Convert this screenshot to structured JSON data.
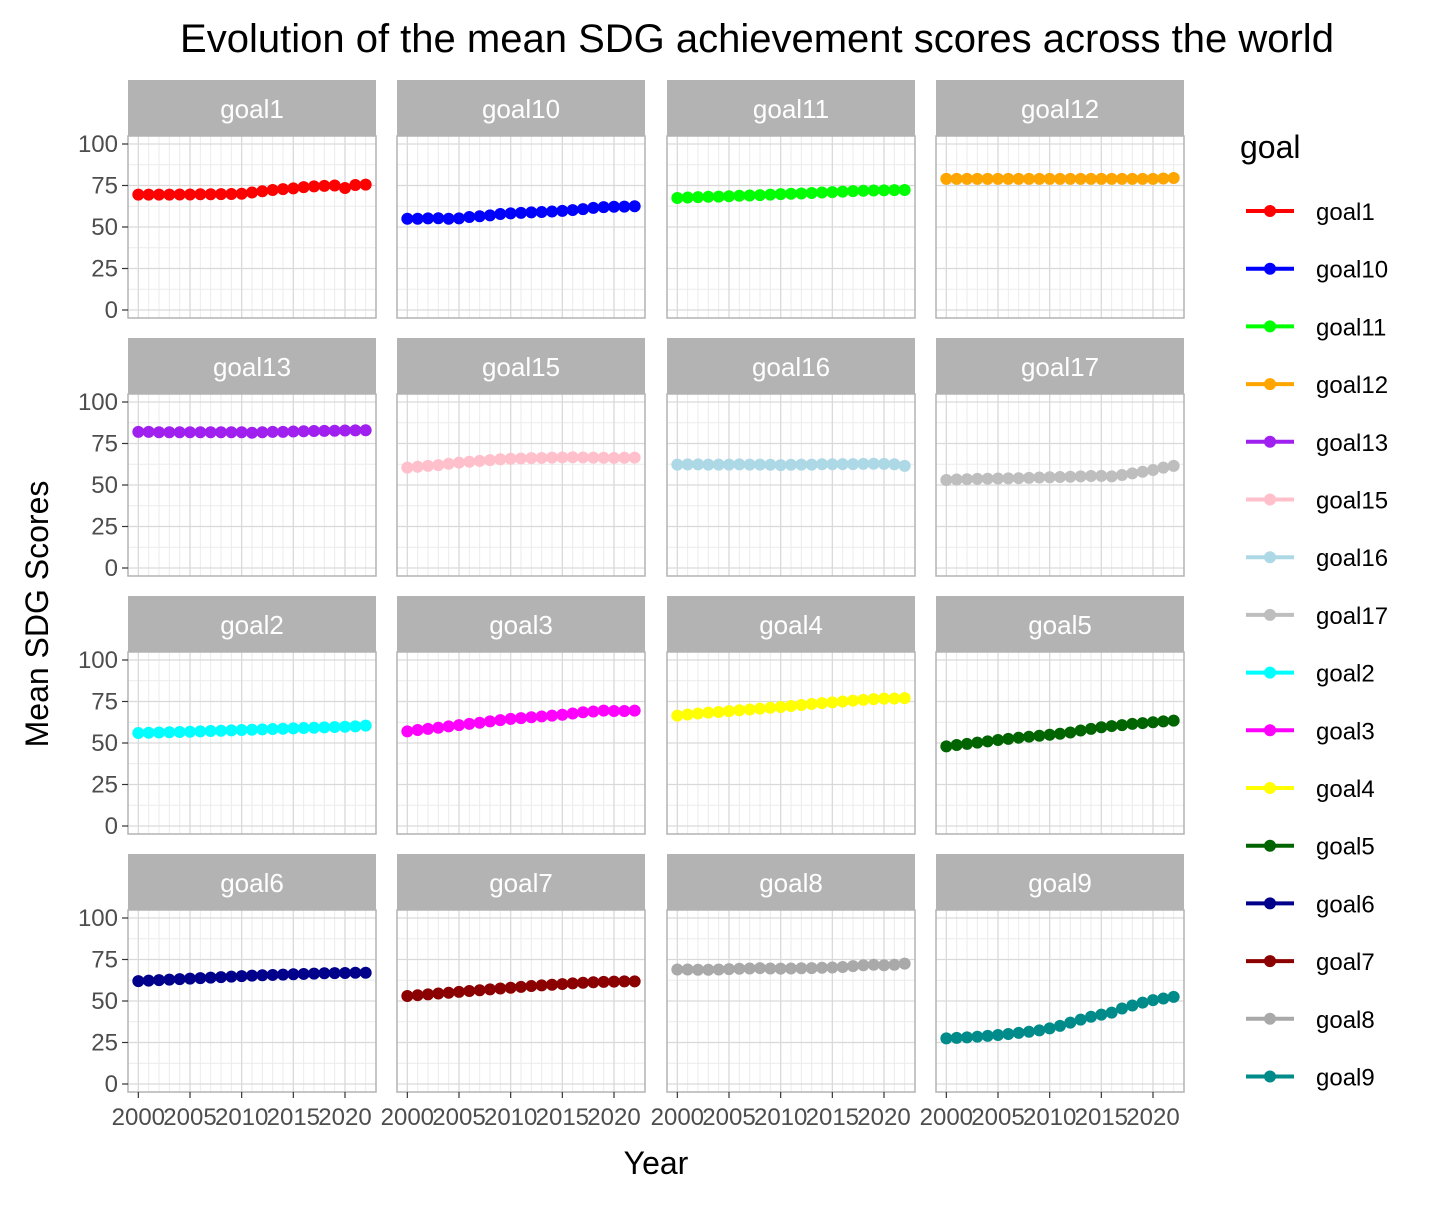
{
  "chart_data": {
    "type": "line",
    "title": "Evolution of the mean SDG achievement scores across the world",
    "xlabel": "Year",
    "ylabel": "Mean SDG Scores",
    "x": [
      2000,
      2001,
      2002,
      2003,
      2004,
      2005,
      2006,
      2007,
      2008,
      2009,
      2010,
      2011,
      2012,
      2013,
      2014,
      2015,
      2016,
      2017,
      2018,
      2019,
      2020,
      2021,
      2022
    ],
    "xlim": [
      1999,
      2023
    ],
    "ylim": [
      0,
      100
    ],
    "x_ticks": [
      2000,
      2005,
      2010,
      2015,
      2020
    ],
    "x_tick_labels": [
      "2000",
      "2005",
      "2010",
      "2015",
      "2020"
    ],
    "y_ticks": [
      0,
      25,
      50,
      75,
      100
    ],
    "y_tick_labels": [
      "0",
      "25",
      "50",
      "75",
      "100"
    ],
    "grid": true,
    "legend": {
      "title": "goal",
      "position": "right"
    },
    "facet_layout": {
      "rows": 4,
      "cols": 4
    },
    "series": [
      {
        "name": "goal1",
        "color": "#ff0000",
        "values": [
          69.5,
          69.5,
          69.5,
          69.5,
          69.6,
          69.6,
          69.7,
          69.7,
          69.8,
          69.9,
          70.0,
          70.8,
          71.5,
          72.3,
          72.8,
          73.3,
          74.0,
          74.5,
          74.8,
          75.0,
          73.5,
          75.3,
          75.5
        ]
      },
      {
        "name": "goal10",
        "color": "#0000ff",
        "values": [
          55.0,
          55.0,
          55.2,
          55.3,
          55.0,
          55.2,
          56.0,
          56.5,
          57.0,
          57.8,
          58.2,
          58.5,
          58.8,
          59.0,
          59.3,
          59.7,
          60.2,
          60.8,
          61.5,
          62.0,
          62.2,
          62.3,
          62.5
        ]
      },
      {
        "name": "goal11",
        "color": "#00ff00",
        "values": [
          67.5,
          67.8,
          68.0,
          68.2,
          68.3,
          68.5,
          68.8,
          69.0,
          69.2,
          69.5,
          69.8,
          70.0,
          70.2,
          70.5,
          70.8,
          71.0,
          71.3,
          71.6,
          71.8,
          72.0,
          72.1,
          72.2,
          72.3
        ]
      },
      {
        "name": "goal12",
        "color": "#ffa500",
        "values": [
          79.0,
          79.0,
          79.0,
          79.0,
          79.0,
          79.0,
          79.0,
          79.0,
          79.0,
          79.0,
          79.0,
          79.0,
          79.0,
          79.0,
          79.0,
          79.0,
          79.0,
          79.0,
          79.0,
          79.0,
          79.0,
          79.2,
          79.5
        ]
      },
      {
        "name": "goal13",
        "color": "#a020f0",
        "values": [
          82.0,
          82.0,
          81.8,
          81.8,
          81.8,
          81.8,
          81.8,
          81.8,
          81.8,
          81.8,
          81.8,
          81.5,
          81.8,
          82.0,
          82.0,
          82.2,
          82.4,
          82.5,
          82.6,
          82.7,
          82.8,
          82.9,
          83.0
        ]
      },
      {
        "name": "goal15",
        "color": "#ffc0cb",
        "values": [
          60.5,
          61.0,
          61.5,
          62.0,
          62.8,
          63.5,
          64.0,
          64.5,
          65.0,
          65.5,
          65.8,
          66.0,
          66.2,
          66.3,
          66.5,
          66.6,
          66.7,
          66.6,
          66.5,
          66.4,
          66.3,
          66.4,
          66.5
        ]
      },
      {
        "name": "goal16",
        "color": "#add8e6",
        "values": [
          62.3,
          62.4,
          62.4,
          62.3,
          62.3,
          62.3,
          62.4,
          62.3,
          62.3,
          62.2,
          62.0,
          62.2,
          62.3,
          62.3,
          62.5,
          62.5,
          62.6,
          62.6,
          62.7,
          62.8,
          62.7,
          62.5,
          61.5
        ]
      },
      {
        "name": "goal17",
        "color": "#bebebe",
        "values": [
          53.0,
          53.3,
          53.5,
          53.7,
          53.8,
          53.9,
          54.0,
          54.1,
          54.3,
          54.5,
          54.7,
          54.8,
          55.0,
          55.2,
          55.4,
          55.5,
          55.2,
          56.0,
          57.0,
          58.0,
          59.0,
          60.5,
          61.5
        ]
      },
      {
        "name": "goal2",
        "color": "#00ffff",
        "values": [
          56.0,
          56.2,
          56.3,
          56.5,
          56.6,
          56.8,
          57.0,
          57.2,
          57.4,
          57.6,
          57.8,
          58.0,
          58.2,
          58.4,
          58.6,
          58.8,
          59.0,
          59.2,
          59.4,
          59.6,
          59.8,
          60.0,
          60.5
        ]
      },
      {
        "name": "goal3",
        "color": "#ff00ff",
        "values": [
          57.0,
          57.8,
          58.5,
          59.2,
          60.0,
          60.8,
          61.5,
          62.2,
          63.0,
          63.8,
          64.5,
          65.0,
          65.5,
          66.0,
          66.5,
          67.0,
          67.8,
          68.5,
          69.0,
          69.5,
          69.3,
          69.3,
          69.5
        ]
      },
      {
        "name": "goal4",
        "color": "#ffff00",
        "values": [
          66.5,
          67.2,
          67.8,
          68.3,
          68.7,
          69.2,
          69.7,
          70.2,
          70.7,
          71.2,
          71.7,
          72.3,
          72.9,
          73.5,
          74.0,
          74.5,
          75.0,
          75.5,
          76.0,
          76.4,
          76.7,
          76.8,
          77.0
        ]
      },
      {
        "name": "goal5",
        "color": "#006400",
        "values": [
          48.0,
          48.8,
          49.5,
          50.2,
          51.0,
          51.8,
          52.5,
          53.2,
          53.8,
          54.4,
          55.0,
          55.6,
          56.3,
          57.5,
          58.5,
          59.5,
          60.2,
          60.8,
          61.5,
          62.0,
          62.5,
          63.0,
          63.5
        ]
      },
      {
        "name": "goal6",
        "color": "#00008b",
        "values": [
          62.0,
          62.3,
          62.6,
          62.9,
          63.2,
          63.5,
          63.8,
          64.1,
          64.4,
          64.7,
          65.0,
          65.3,
          65.5,
          65.7,
          65.9,
          66.1,
          66.3,
          66.5,
          66.7,
          66.8,
          66.9,
          67.0,
          67.0
        ]
      },
      {
        "name": "goal7",
        "color": "#8b0000",
        "values": [
          53.0,
          53.5,
          54.0,
          54.5,
          55.0,
          55.5,
          56.0,
          56.5,
          57.0,
          57.5,
          58.0,
          58.5,
          59.0,
          59.4,
          59.8,
          60.2,
          60.6,
          61.0,
          61.3,
          61.5,
          61.7,
          61.8,
          61.8
        ]
      },
      {
        "name": "goal8",
        "color": "#a9a9a9",
        "values": [
          69.0,
          69.0,
          68.8,
          68.8,
          69.0,
          69.2,
          69.4,
          69.6,
          69.8,
          69.6,
          69.5,
          69.6,
          69.7,
          69.8,
          70.0,
          70.2,
          70.5,
          71.0,
          71.5,
          71.8,
          71.5,
          71.8,
          72.5
        ]
      },
      {
        "name": "goal9",
        "color": "#008b8b",
        "values": [
          27.5,
          27.8,
          28.1,
          28.5,
          29.0,
          29.5,
          30.1,
          30.8,
          31.5,
          32.3,
          33.5,
          35.0,
          37.0,
          38.8,
          40.5,
          41.8,
          43.0,
          45.5,
          47.3,
          49.0,
          50.5,
          51.5,
          52.5
        ]
      }
    ]
  }
}
